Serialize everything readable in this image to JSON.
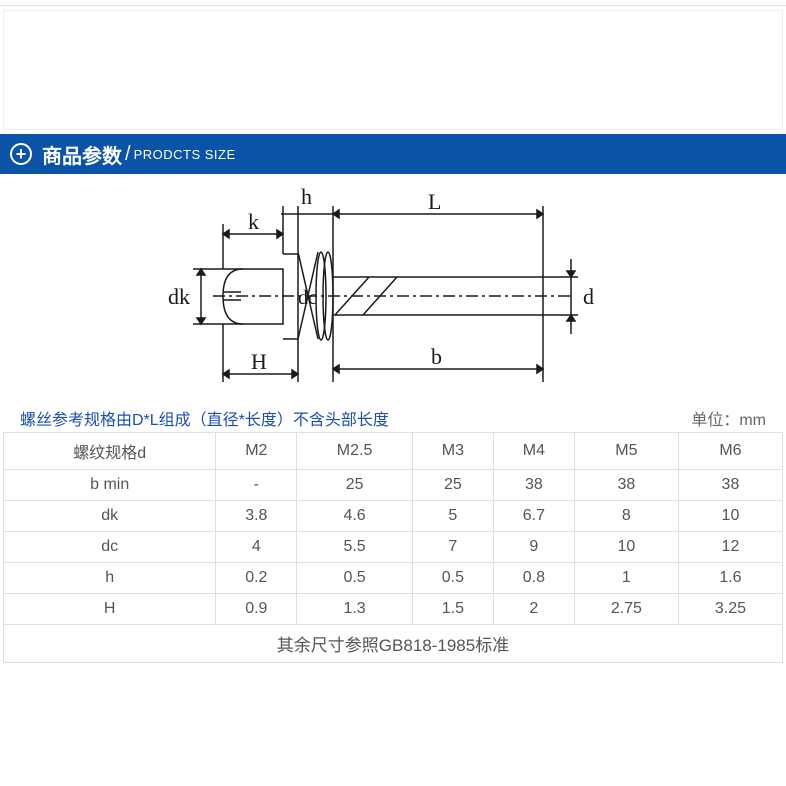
{
  "header": {
    "title_cn": "商品参数",
    "title_en": "PRODCTS SIZE",
    "bar_color": "#0b53a7",
    "text_color": "#ffffff"
  },
  "diagram": {
    "labels": {
      "k": "k",
      "h": "h",
      "L": "L",
      "dk": "dk",
      "dc": "dc",
      "d": "d",
      "H": "H",
      "b": "b"
    },
    "stroke_color": "#1a1a1a",
    "font_family": "serif",
    "font_size": 22
  },
  "note": {
    "text": "螺丝参考规格由D*L组成（直径*长度）不含头部长度",
    "color": "#1a4fb8"
  },
  "unit": {
    "label": "单位：",
    "value": "mm",
    "color": "#666666"
  },
  "table": {
    "columns": [
      "螺纹规格d",
      "M2",
      "M2.5",
      "M3",
      "M4",
      "M5",
      "M6"
    ],
    "rows": [
      [
        "b min",
        "-",
        "25",
        "25",
        "38",
        "38",
        "38"
      ],
      [
        "dk",
        "3.8",
        "4.6",
        "5",
        "6.7",
        "8",
        "10"
      ],
      [
        "dc",
        "4",
        "5.5",
        "7",
        "9",
        "10",
        "12"
      ],
      [
        "h",
        "0.2",
        "0.5",
        "0.5",
        "0.8",
        "1",
        "1.6"
      ],
      [
        "H",
        "0.9",
        "1.3",
        "1.5",
        "2",
        "2.75",
        "3.25"
      ]
    ],
    "border_color": "#e0e0e0",
    "text_color": "#555555"
  },
  "footer_standard": "其余尺寸参照GB818-1985标准"
}
